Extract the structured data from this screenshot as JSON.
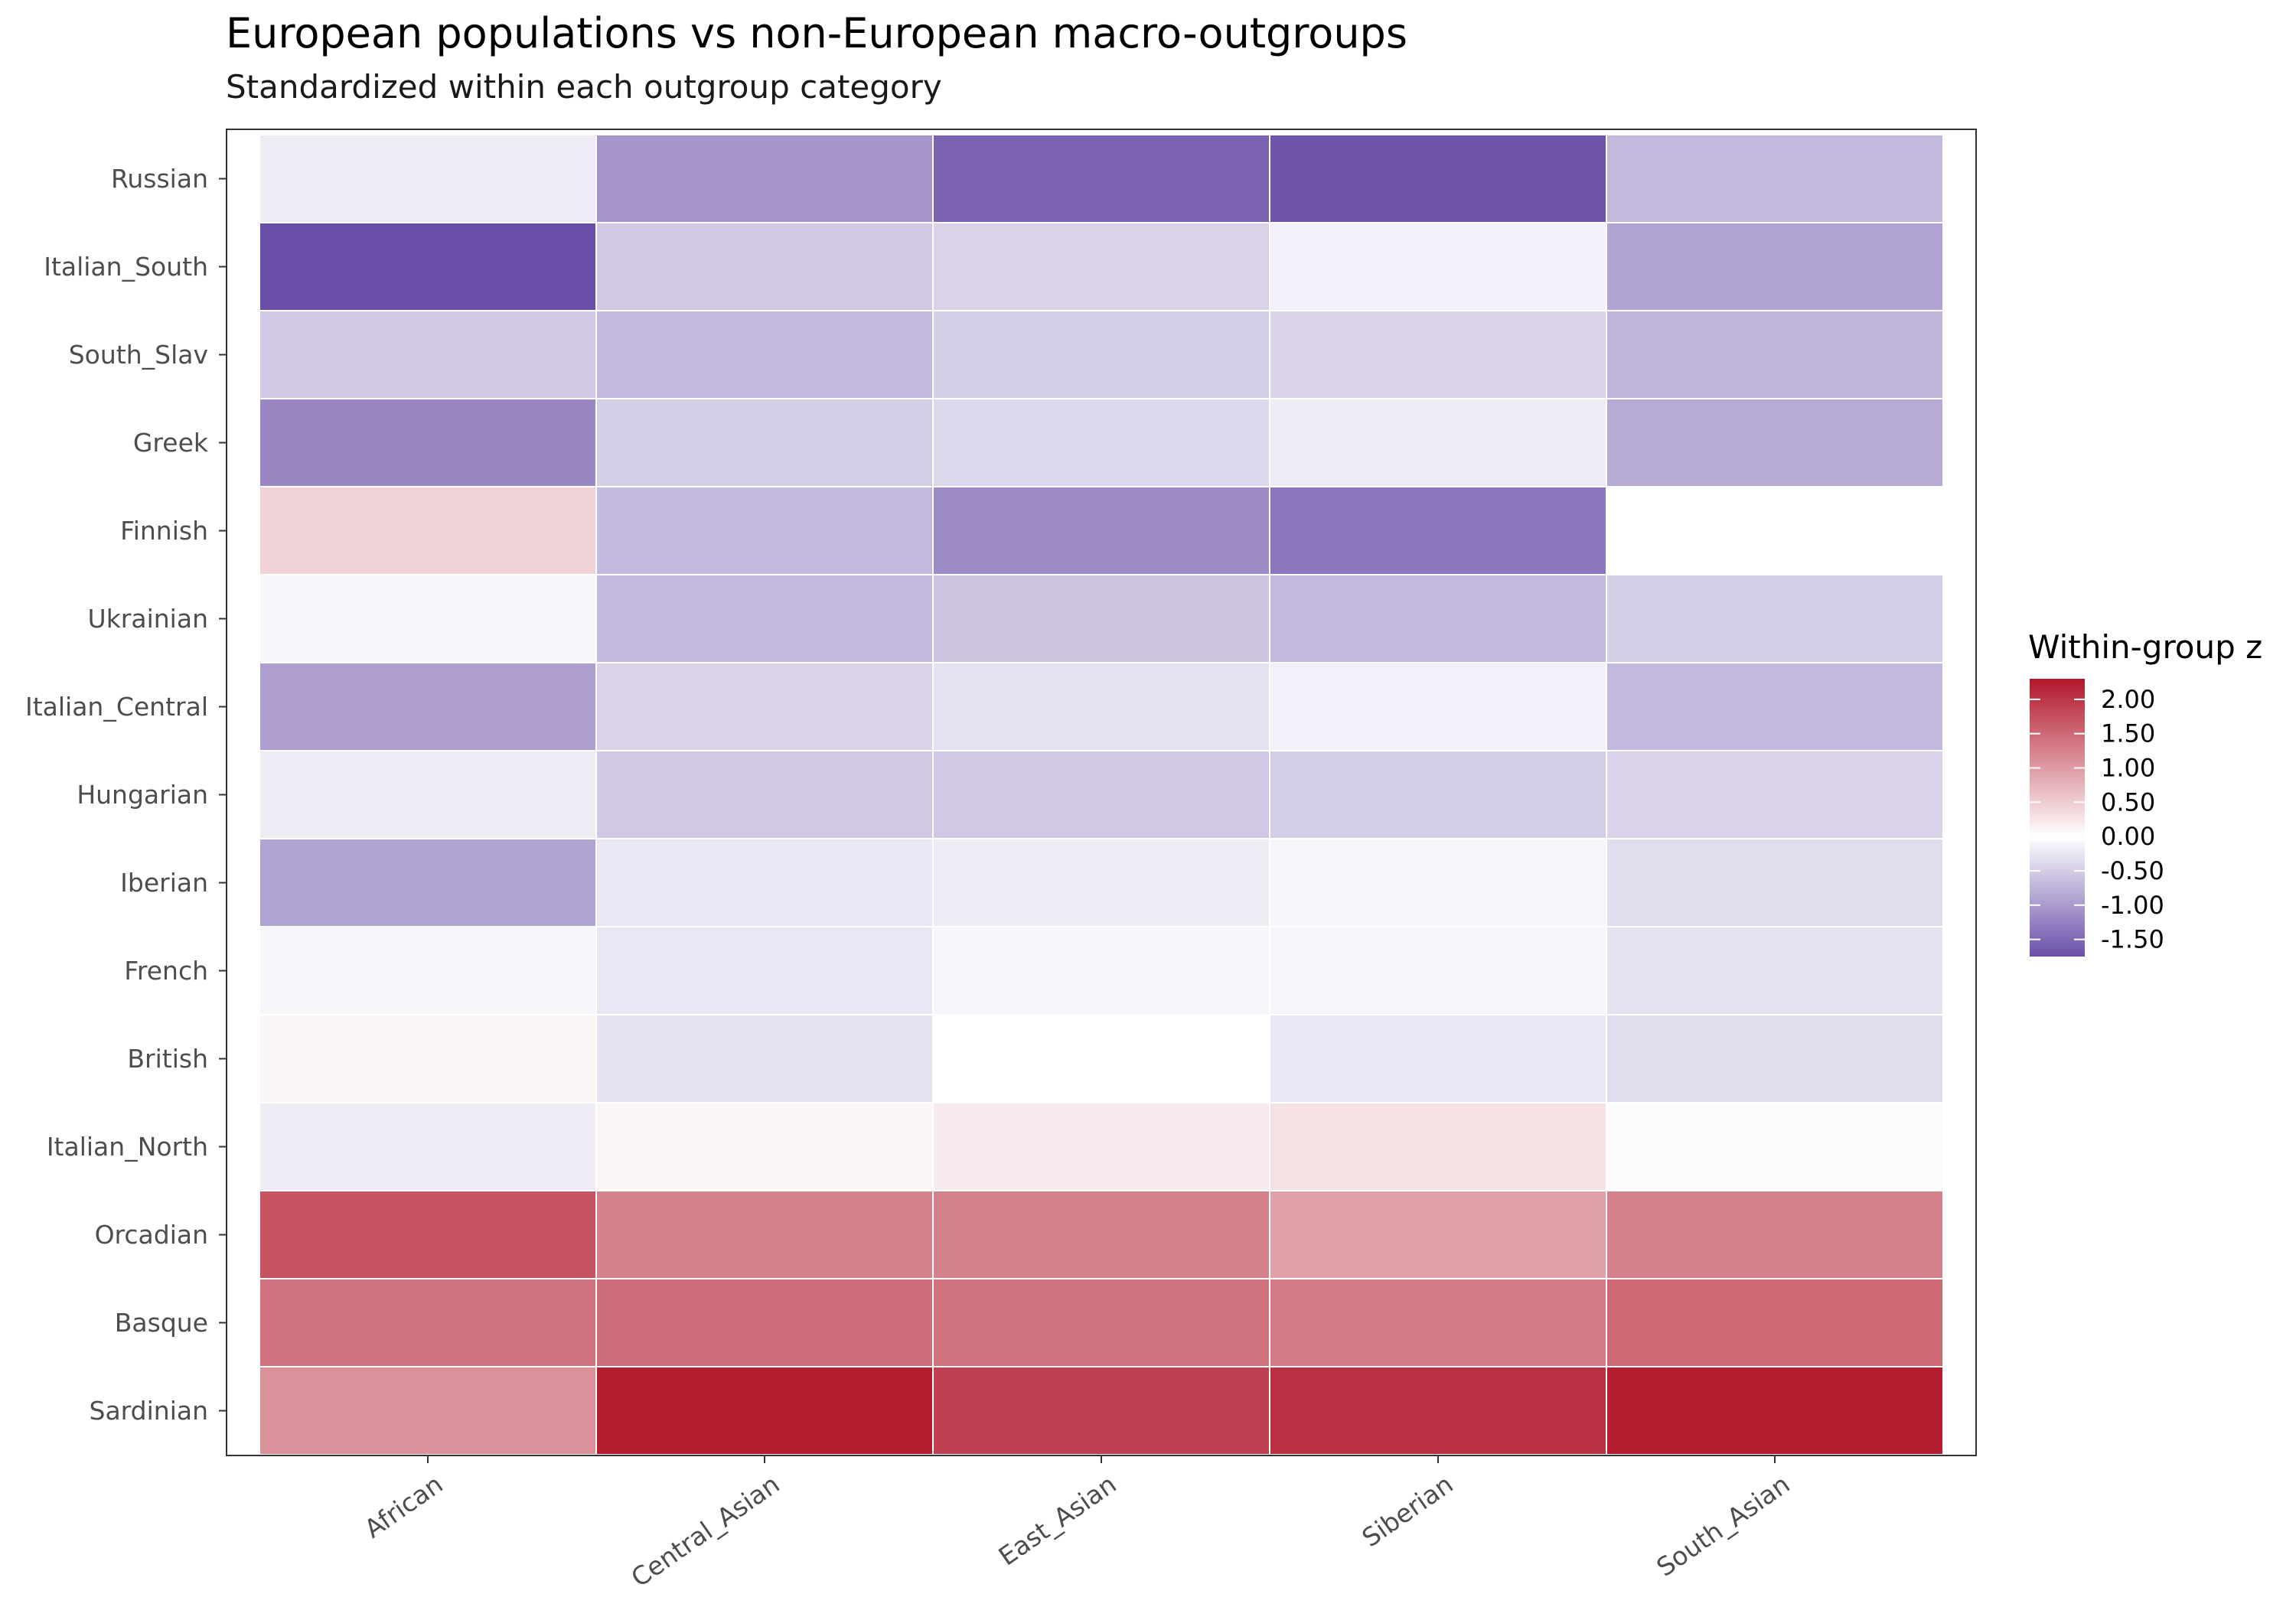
{
  "chart_data": {
    "type": "heatmap",
    "title": "European populations vs non-European macro-outgroups",
    "subtitle": "Standardized within each outgroup category",
    "xlabel": "",
    "ylabel": "",
    "x_categories": [
      "African",
      "Central_Asian",
      "East_Asian",
      "Siberian",
      "South_Asian"
    ],
    "y_categories": [
      "Russian",
      "Italian_South",
      "South_Slav",
      "Greek",
      "Finnish",
      "Ukrainian",
      "Italian_Central",
      "Hungarian",
      "Iberian",
      "French",
      "British",
      "Italian_North",
      "Orcadian",
      "Basque",
      "Sardinian"
    ],
    "values": [
      [
        -0.2,
        -1.05,
        -1.55,
        -1.7,
        -0.7
      ],
      [
        -1.75,
        -0.55,
        -0.45,
        -0.15,
        -0.9
      ],
      [
        -0.55,
        -0.7,
        -0.5,
        -0.45,
        -0.75
      ],
      [
        -1.2,
        -0.5,
        -0.4,
        -0.2,
        -0.85
      ],
      [
        0.45,
        -0.7,
        -1.15,
        -1.35,
        0.0
      ],
      [
        -0.1,
        -0.7,
        -0.6,
        -0.7,
        -0.5
      ],
      [
        -0.95,
        -0.45,
        -0.3,
        -0.15,
        -0.7
      ],
      [
        -0.2,
        -0.55,
        -0.55,
        -0.5,
        -0.45
      ],
      [
        -0.9,
        -0.25,
        -0.2,
        -0.1,
        -0.35
      ],
      [
        -0.1,
        -0.25,
        -0.1,
        -0.1,
        -0.3
      ],
      [
        0.1,
        -0.3,
        0.0,
        -0.25,
        -0.35
      ],
      [
        -0.2,
        0.1,
        0.2,
        0.3,
        -0.05
      ],
      [
        1.7,
        1.25,
        1.25,
        0.95,
        1.25
      ],
      [
        1.4,
        1.45,
        1.4,
        1.3,
        1.5
      ],
      [
        1.1,
        2.25,
        1.9,
        2.05,
        2.25
      ]
    ],
    "color_scale": {
      "low": "#6a4fa8",
      "mid": "#ffffff",
      "high": "#b2182b",
      "min": -1.75,
      "max": 2.3
    },
    "legend": {
      "title": "Within-group z",
      "position": "right",
      "ticks": [
        2.0,
        1.5,
        1.0,
        0.5,
        0.0,
        -0.5,
        -1.0,
        -1.5
      ],
      "tick_labels": [
        "2.00",
        "1.50",
        "1.00",
        "0.50",
        "0.00",
        "-0.50",
        "-1.00",
        "-1.50"
      ]
    },
    "grid": false
  }
}
